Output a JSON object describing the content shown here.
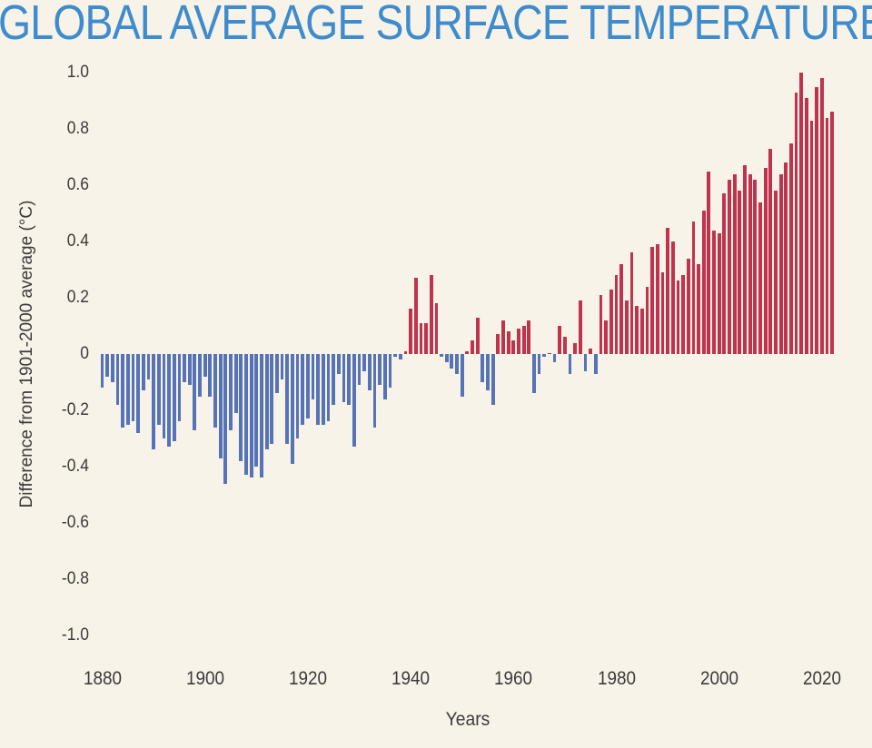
{
  "title": "GLOBAL AVERAGE SURFACE TEMPERATURE",
  "colors": {
    "background": "#f8f3e8",
    "title_text": "#3e8ccd",
    "axis_text": "#3b3b3b",
    "positive_bar": "#c0334d",
    "negative_bar": "#5573b6"
  },
  "chart_data": {
    "type": "bar",
    "title": "GLOBAL AVERAGE SURFACE TEMPERATURE",
    "xlabel": "Years",
    "ylabel": "Difference from 1901-2000 average (°C)",
    "ylim": [
      -1.0,
      1.0
    ],
    "grid": false,
    "legend": false,
    "y_tick_labels": [
      "1.0",
      "0.8",
      "0.6",
      "0.4",
      "0.2",
      "0",
      "-0.2",
      "-0.4",
      "-0.6",
      "-0.8",
      "-1.0"
    ],
    "x_tick_labels": [
      "1880",
      "1900",
      "1920",
      "1940",
      "1960",
      "1980",
      "2000",
      "2020"
    ],
    "year_start": 1880,
    "year_end": 2022,
    "values": [
      -0.12,
      -0.08,
      -0.1,
      -0.18,
      -0.26,
      -0.25,
      -0.24,
      -0.28,
      -0.13,
      -0.09,
      -0.34,
      -0.25,
      -0.3,
      -0.33,
      -0.31,
      -0.24,
      -0.1,
      -0.11,
      -0.27,
      -0.15,
      -0.08,
      -0.15,
      -0.26,
      -0.37,
      -0.46,
      -0.27,
      -0.21,
      -0.38,
      -0.43,
      -0.44,
      -0.4,
      -0.44,
      -0.34,
      -0.32,
      -0.14,
      -0.09,
      -0.32,
      -0.39,
      -0.3,
      -0.25,
      -0.23,
      -0.16,
      -0.25,
      -0.25,
      -0.24,
      -0.18,
      -0.07,
      -0.17,
      -0.18,
      -0.33,
      -0.11,
      -0.06,
      -0.13,
      -0.26,
      -0.11,
      -0.16,
      -0.12,
      -0.01,
      -0.02,
      0.01,
      0.16,
      0.27,
      0.11,
      0.11,
      0.28,
      0.18,
      -0.01,
      -0.03,
      -0.05,
      -0.07,
      -0.15,
      0.01,
      0.05,
      0.13,
      -0.1,
      -0.13,
      -0.18,
      0.07,
      0.12,
      0.08,
      0.05,
      0.09,
      0.1,
      0.12,
      -0.14,
      -0.07,
      -0.01,
      0.0,
      -0.03,
      0.1,
      0.06,
      -0.07,
      0.04,
      0.19,
      -0.06,
      0.02,
      -0.07,
      0.21,
      0.12,
      0.23,
      0.28,
      0.32,
      0.19,
      0.36,
      0.17,
      0.16,
      0.24,
      0.38,
      0.39,
      0.29,
      0.45,
      0.4,
      0.26,
      0.28,
      0.34,
      0.47,
      0.32,
      0.51,
      0.65,
      0.44,
      0.43,
      0.57,
      0.62,
      0.64,
      0.58,
      0.67,
      0.64,
      0.62,
      0.54,
      0.66,
      0.73,
      0.58,
      0.64,
      0.68,
      0.75,
      0.93,
      1.0,
      0.91,
      0.83,
      0.95,
      0.98,
      0.84,
      0.86
    ]
  }
}
